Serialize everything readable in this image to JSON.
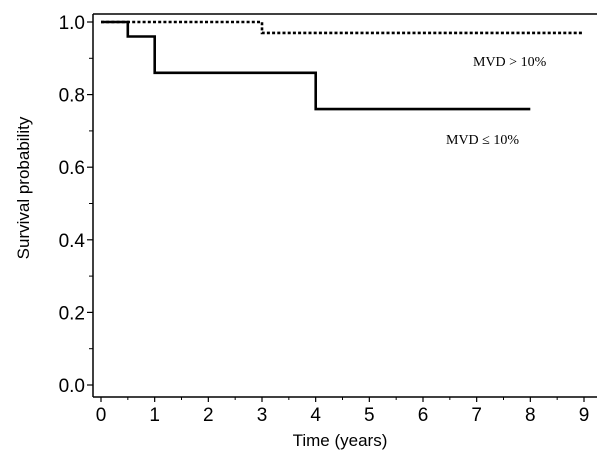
{
  "chart_data": {
    "type": "line",
    "step": true,
    "title": "",
    "xlabel": "Time (years)",
    "ylabel": "Survival probability",
    "xlim": [
      0,
      9
    ],
    "ylim": [
      0,
      1.0
    ],
    "x_ticks": [
      0,
      1,
      2,
      3,
      4,
      5,
      6,
      7,
      8,
      9
    ],
    "y_ticks": [
      0.0,
      0.2,
      0.4,
      0.6,
      0.8,
      1.0
    ],
    "x_tick_labels": [
      "0",
      "1",
      "2",
      "3",
      "4",
      "5",
      "6",
      "7",
      "8",
      "9"
    ],
    "y_tick_labels": [
      "0.0",
      "0.2",
      "0.4",
      "0.6",
      "0.8",
      "1.0"
    ],
    "grid": false,
    "series": [
      {
        "name": "MVD > 10%",
        "style": "dotted",
        "color": "#000000",
        "points": [
          [
            0,
            1.0
          ],
          [
            3,
            1.0
          ],
          [
            3,
            0.97
          ],
          [
            9,
            0.97
          ]
        ]
      },
      {
        "name": "MVD ≤ 10%",
        "style": "solid",
        "color": "#000000",
        "points": [
          [
            0,
            1.0
          ],
          [
            0.5,
            1.0
          ],
          [
            0.5,
            0.96
          ],
          [
            1,
            0.96
          ],
          [
            1,
            0.86
          ],
          [
            4,
            0.86
          ],
          [
            4,
            0.76
          ],
          [
            8,
            0.76
          ]
        ]
      }
    ],
    "annotations": [
      {
        "text": "MVD > 10%",
        "series": 0
      },
      {
        "text": "MVD ≤ 10%",
        "series": 1
      }
    ]
  }
}
